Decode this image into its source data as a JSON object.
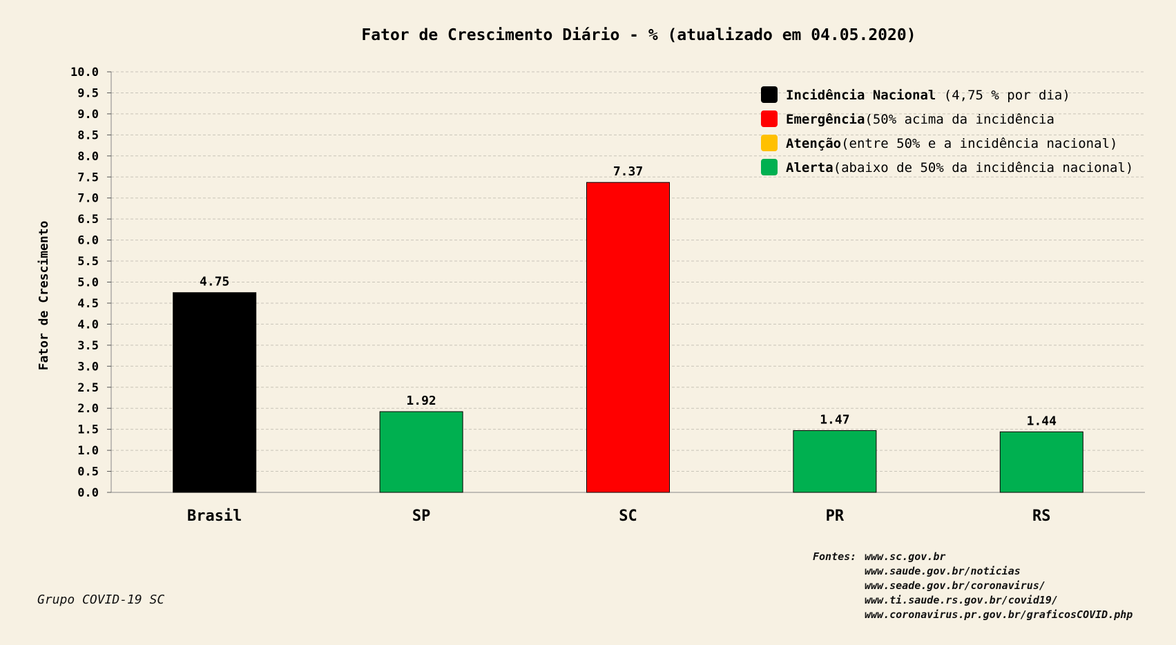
{
  "chart_data": {
    "type": "bar",
    "title": "Fator de Crescimento Diário - % (atualizado em 04.05.2020)",
    "ylabel": "Fator de Crescimento",
    "xlabel": "",
    "categories": [
      "Brasil",
      "SP",
      "SC",
      "PR",
      "RS"
    ],
    "values": [
      4.75,
      1.92,
      7.37,
      1.47,
      1.44
    ],
    "value_labels": [
      "4.75",
      "1.92",
      "7.37",
      "1.47",
      "1.44"
    ],
    "bar_colors": [
      "#000000",
      "#00b050",
      "#ff0000",
      "#00b050",
      "#00b050"
    ],
    "ylim": [
      0,
      10
    ],
    "yticks": [
      "0.0",
      "0.5",
      "1.0",
      "1.5",
      "2.0",
      "2.5",
      "3.0",
      "3.5",
      "4.0",
      "4.5",
      "5.0",
      "5.5",
      "6.0",
      "6.5",
      "7.0",
      "7.5",
      "8.0",
      "8.5",
      "9.0",
      "9.5",
      "10.0"
    ],
    "grid": true,
    "legend_position": "top-right",
    "legend": [
      {
        "bold": "Incidência Nacional",
        "rest": " (4,75 % por dia)",
        "color": "#000000"
      },
      {
        "bold": "Emergência",
        "rest": "(50% acima da incidência",
        "color": "#ff0000"
      },
      {
        "bold": "Atenção",
        "rest": "(entre 50% e a incidência nacional)",
        "color": "#ffc000"
      },
      {
        "bold": "Alerta",
        "rest": "(abaixo de 50% da incidência nacional)",
        "color": "#00b050"
      }
    ]
  },
  "footer": {
    "credit": "Grupo COVID-19 SC",
    "sources_label": "Fontes:",
    "sources": [
      "www.sc.gov.br",
      "www.saude.gov.br/noticias",
      "www.seade.gov.br/coronavirus/",
      "www.ti.saude.rs.gov.br/covid19/",
      "www.coronavirus.pr.gov.br/graficosCOVID.php"
    ]
  }
}
